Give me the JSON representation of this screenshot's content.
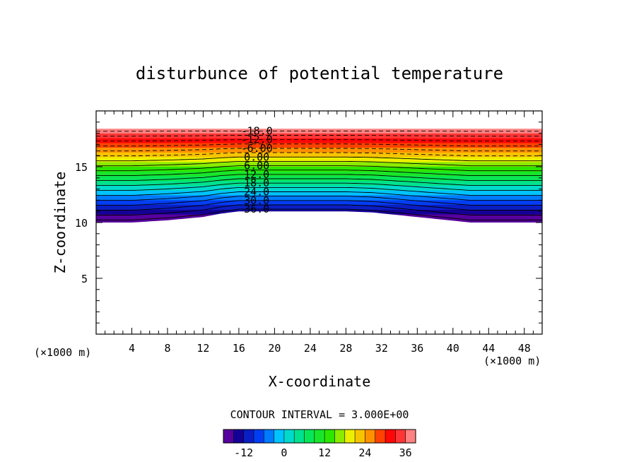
{
  "chart_data": {
    "type": "contour",
    "title": "disturbunce of potential temperature",
    "xlabel": "X-coordinate",
    "ylabel": "Z-coordinate",
    "x_unit": "(×1000 m)",
    "y_unit": "(×1000 m)",
    "xlim": [
      0,
      50
    ],
    "ylim": [
      0,
      20
    ],
    "x_ticks": [
      4,
      8,
      12,
      16,
      20,
      24,
      28,
      32,
      36,
      40,
      44,
      48
    ],
    "y_ticks": [
      5,
      10,
      15
    ],
    "contour_interval_label": "CONTOUR INTERVAL = 3.000E+00",
    "colorbar_ticks": [
      -12,
      0,
      12,
      24,
      36
    ],
    "colorbar_range": [
      -18,
      39
    ],
    "contour_labels": [
      "-18.0",
      "-12.0",
      "-6.00",
      "0.00",
      "6.00",
      "12.0",
      "18.0",
      "24.0",
      "30.0",
      "36.0"
    ],
    "contour_levels": [
      -18,
      -15,
      -12,
      -9,
      -6,
      -3,
      0,
      3,
      6,
      9,
      12,
      15,
      18,
      21,
      24,
      27,
      30,
      33,
      36
    ],
    "field_top_z": 18.4,
    "field_bottom_profile": {
      "x": [
        0,
        4,
        8,
        12,
        14,
        16,
        28,
        31,
        42,
        50
      ],
      "z": [
        10.0,
        10.0,
        10.2,
        10.5,
        10.8,
        11.0,
        11.0,
        10.9,
        10.0,
        10.0
      ]
    },
    "colors": {
      "background": "#ffffff",
      "frame": "#000000",
      "contour_line": "#000000"
    }
  }
}
